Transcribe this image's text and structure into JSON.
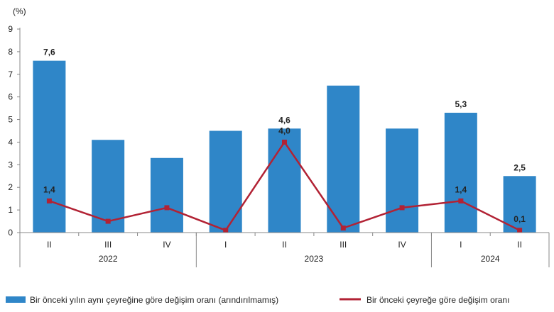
{
  "chart_data": {
    "type": "bar",
    "unit_label": "(%)",
    "ylim": [
      0,
      9
    ],
    "yticks": [
      0,
      1,
      2,
      3,
      4,
      5,
      6,
      7,
      8,
      9
    ],
    "categories": [
      "II",
      "III",
      "IV",
      "I",
      "II",
      "III",
      "IV",
      "I",
      "II"
    ],
    "year_groups": [
      {
        "label": "2022",
        "start": 0,
        "end": 2
      },
      {
        "label": "2023",
        "start": 3,
        "end": 6
      },
      {
        "label": "2024",
        "start": 7,
        "end": 8
      }
    ],
    "grid": false,
    "legend_position": "bottom",
    "series": [
      {
        "name": "Bir önceki yılın aynı çeyreğine göre değişim oranı (arındırılmamış)",
        "type": "bar",
        "color": "#2f86c8",
        "values": [
          7.6,
          4.1,
          3.3,
          4.5,
          4.6,
          6.5,
          4.6,
          5.3,
          2.5
        ],
        "labels": [
          "7,6",
          "",
          "",
          "",
          "4,6",
          "",
          "",
          "5,3",
          "2,5"
        ]
      },
      {
        "name": "Bir önceki çeyreğe göre değişim oranı",
        "type": "line",
        "color": "#b22234",
        "values": [
          1.4,
          0.5,
          1.1,
          0.1,
          4.0,
          0.2,
          1.1,
          1.4,
          0.1
        ],
        "labels": [
          "1,4",
          "",
          "",
          "",
          "4,0",
          "",
          "",
          "1,4",
          "0,1"
        ]
      }
    ]
  }
}
